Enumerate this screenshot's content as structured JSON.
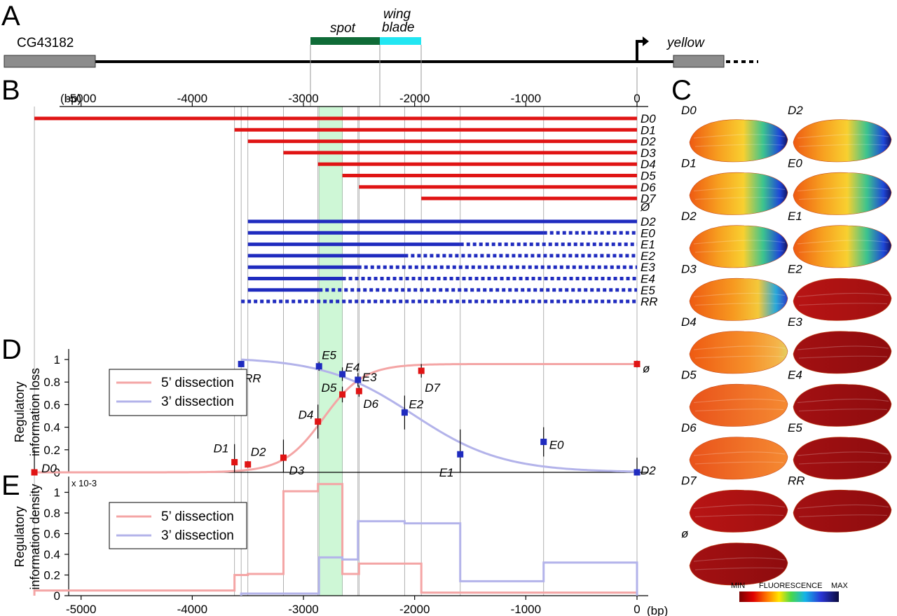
{
  "panels": {
    "a": "A",
    "b": "B",
    "c": "C",
    "d": "D",
    "e": "E"
  },
  "panel_a": {
    "gene_left": "CG43182",
    "gene_right": "yellow",
    "spot_label": "spot",
    "wing_label_1": "wing",
    "wing_label_2": "blade",
    "colors": {
      "spot": "#0f6b37",
      "wing_blade": "#22e6f2",
      "gene": "#8c8c8c"
    }
  },
  "panel_b": {
    "unit": "(bp)",
    "ticks": [
      "-5000",
      "-4000",
      "-3000",
      "-2000",
      "-1000",
      "0"
    ],
    "colors": {
      "five_prime": "#e01414",
      "three_prime": "#1f2bbf"
    },
    "five_prime_constructs": [
      {
        "label": "D0",
        "start": -5420
      },
      {
        "label": "D1",
        "start": -3620
      },
      {
        "label": "D2",
        "start": -3500
      },
      {
        "label": "D3",
        "start": -3180
      },
      {
        "label": "D4",
        "start": -2870
      },
      {
        "label": "D5",
        "start": -2650
      },
      {
        "label": "D6",
        "start": -2500
      },
      {
        "label": "D7",
        "start": -1940
      }
    ],
    "empty_label": "Ø",
    "three_prime_constructs": [
      {
        "label": "D2",
        "end": 0
      },
      {
        "label": "E0",
        "end": -840
      },
      {
        "label": "E1",
        "end": -1590
      },
      {
        "label": "E2",
        "end": -2090
      },
      {
        "label": "E3",
        "end": -2510
      },
      {
        "label": "E4",
        "end": -2650
      },
      {
        "label": "E5",
        "end": -2860
      },
      {
        "label": "RR",
        "end": -3560
      }
    ]
  },
  "panel_c": {
    "labels_left": [
      "D0",
      "D1",
      "D2",
      "D3",
      "D4",
      "D5",
      "D6",
      "D7",
      "ø"
    ],
    "labels_right": [
      "D2",
      "E0",
      "E1",
      "E2",
      "E3",
      "E4",
      "E5",
      "RR"
    ],
    "scale_min": "MIN",
    "scale_title": "FLUORESCENCE",
    "scale_max": "MAX"
  },
  "legend": {
    "five_prime": "5’ dissection",
    "three_prime": "3’ dissection"
  },
  "chart_data": [
    {
      "type": "scatter",
      "ylabel_1": "Regulatory",
      "ylabel_2": "information loss",
      "ylim": [
        0,
        1.05
      ],
      "yticks": [
        "0",
        "0.2",
        "0.4",
        "0.6",
        "0.8",
        "1"
      ],
      "series": [
        {
          "name": "5’ dissection",
          "color": "#e01414",
          "points": [
            {
              "label": "D0",
              "x": -5420,
              "y": 0.0,
              "err": 0.2
            },
            {
              "label": "D1",
              "x": -3620,
              "y": 0.09,
              "err": 0.16
            },
            {
              "label": "D2",
              "x": -3500,
              "y": 0.07,
              "err": 0.03
            },
            {
              "label": "D3",
              "x": -3180,
              "y": 0.13,
              "err": 0.16
            },
            {
              "label": "D4",
              "x": -2870,
              "y": 0.45,
              "err": 0.15
            },
            {
              "label": "D5",
              "x": -2650,
              "y": 0.69,
              "err": 0.07
            },
            {
              "label": "D6",
              "x": -2500,
              "y": 0.72,
              "err": 0.05
            },
            {
              "label": "D7",
              "x": -1940,
              "y": 0.9,
              "err": 0.06
            },
            {
              "label": "ø",
              "x": 0,
              "y": 0.96,
              "err": 0.03
            }
          ]
        },
        {
          "name": "3’ dissection",
          "color": "#1f2bbf",
          "points": [
            {
              "label": "RR",
              "x": -3560,
              "y": 0.96,
              "err": 0.02
            },
            {
              "label": "E5",
              "x": -2860,
              "y": 0.94,
              "err": 0.04
            },
            {
              "label": "E4",
              "x": -2650,
              "y": 0.87,
              "err": 0.06
            },
            {
              "label": "E3",
              "x": -2510,
              "y": 0.82,
              "err": 0.06
            },
            {
              "label": "E2",
              "x": -2090,
              "y": 0.53,
              "err": 0.15
            },
            {
              "label": "E1",
              "x": -1590,
              "y": 0.16,
              "err": 0.22
            },
            {
              "label": "E0",
              "x": -840,
              "y": 0.27,
              "err": 0.13
            },
            {
              "label": "D2",
              "x": 0,
              "y": 0.0,
              "err": 0.13
            }
          ]
        }
      ],
      "fits": [
        {
          "name": "5’ dissection",
          "color": "#f4a5a5",
          "midpoint": -2820,
          "width": 180,
          "ymax": 0.96
        },
        {
          "name": "3’ dissection",
          "color": "#b3b3ea",
          "midpoint": -2010,
          "width": 400,
          "ymax": 1.02
        }
      ],
      "highlight_region": [
        -2860,
        -2650
      ]
    },
    {
      "type": "line",
      "ylabel_1": "Regulatory",
      "ylabel_2": "information density",
      "yscale_note": "x 10-3",
      "ylim": [
        0,
        1.12
      ],
      "yticks": [
        "0",
        "0.2",
        "0.4",
        "0.6",
        "0.8",
        "1"
      ],
      "xticks": [
        "-5000",
        "-4000",
        "-3000",
        "-2000",
        "-1000",
        "0"
      ],
      "xunit": "(bp)",
      "series": [
        {
          "name": "5’ dissection",
          "color": "#f4a5a5",
          "steps": [
            {
              "x0": -5420,
              "x1": -3620,
              "y": 0.05
            },
            {
              "x0": -3620,
              "x1": -3500,
              "y": 0.2
            },
            {
              "x0": -3500,
              "x1": -3180,
              "y": 0.21
            },
            {
              "x0": -3180,
              "x1": -2870,
              "y": 1.01
            },
            {
              "x0": -2870,
              "x1": -2650,
              "y": 1.08
            },
            {
              "x0": -2650,
              "x1": -2500,
              "y": 0.21
            },
            {
              "x0": -2500,
              "x1": -1940,
              "y": 0.31
            },
            {
              "x0": -1940,
              "x1": 0,
              "y": 0.03
            }
          ]
        },
        {
          "name": "3’ dissection",
          "color": "#b3b3ea",
          "steps": [
            {
              "x0": -3560,
              "x1": -2860,
              "y": 0.02
            },
            {
              "x0": -2860,
              "x1": -2650,
              "y": 0.37
            },
            {
              "x0": -2650,
              "x1": -2510,
              "y": 0.35
            },
            {
              "x0": -2510,
              "x1": -2090,
              "y": 0.72
            },
            {
              "x0": -2090,
              "x1": -1590,
              "y": 0.7
            },
            {
              "x0": -1590,
              "x1": -840,
              "y": 0.14
            },
            {
              "x0": -840,
              "x1": 0,
              "y": 0.32
            }
          ]
        }
      ]
    }
  ]
}
